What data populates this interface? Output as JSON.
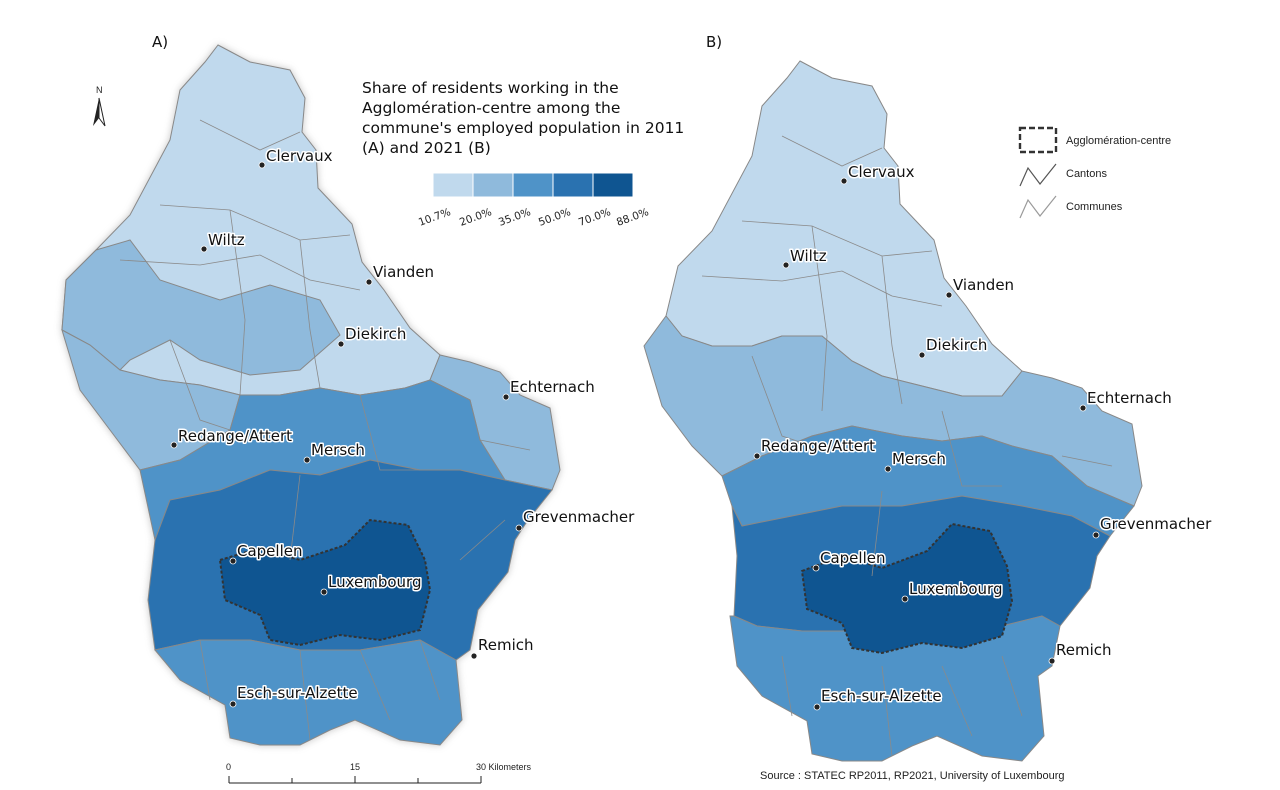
{
  "panels": [
    {
      "label": "A)",
      "cities": [
        {
          "name": "Clervaux"
        },
        {
          "name": "Wiltz"
        },
        {
          "name": "Vianden"
        },
        {
          "name": "Diekirch"
        },
        {
          "name": "Echternach"
        },
        {
          "name": "Redange/Attert"
        },
        {
          "name": "Mersch"
        },
        {
          "name": "Grevenmacher"
        },
        {
          "name": "Capellen"
        },
        {
          "name": "Luxembourg"
        },
        {
          "name": "Remich"
        },
        {
          "name": "Esch-sur-Alzette"
        }
      ]
    },
    {
      "label": "B)",
      "cities": [
        {
          "name": "Clervaux"
        },
        {
          "name": "Wiltz"
        },
        {
          "name": "Vianden"
        },
        {
          "name": "Diekirch"
        },
        {
          "name": "Echternach"
        },
        {
          "name": "Redange/Attert"
        },
        {
          "name": "Mersch"
        },
        {
          "name": "Grevenmacher"
        },
        {
          "name": "Capellen"
        },
        {
          "name": "Luxembourg"
        },
        {
          "name": "Remich"
        },
        {
          "name": "Esch-sur-Alzette"
        }
      ]
    }
  ],
  "legend": {
    "title_lines": [
      "Share of residents working in the",
      "Agglomération-centre among the",
      "commune's employed population in 2011",
      "(A) and 2021 (B)"
    ],
    "breaks": [
      "10.7%",
      "20.0%",
      "35.0%",
      "50.0%",
      "70.0%",
      "88.0%"
    ],
    "colors": [
      "#c0d9ed",
      "#8fbadc",
      "#4f93c8",
      "#2a72b0",
      "#0f5591"
    ]
  },
  "key": {
    "agglomeration": "Agglomération-centre",
    "cantons": "Cantons",
    "communes": "Communes"
  },
  "north": {
    "label": "N"
  },
  "scale": {
    "ticks": [
      "0",
      "15",
      "30 Kilometers"
    ]
  },
  "source": "Source : STATEC RP2011, RP2021, University of Luxembourg"
}
